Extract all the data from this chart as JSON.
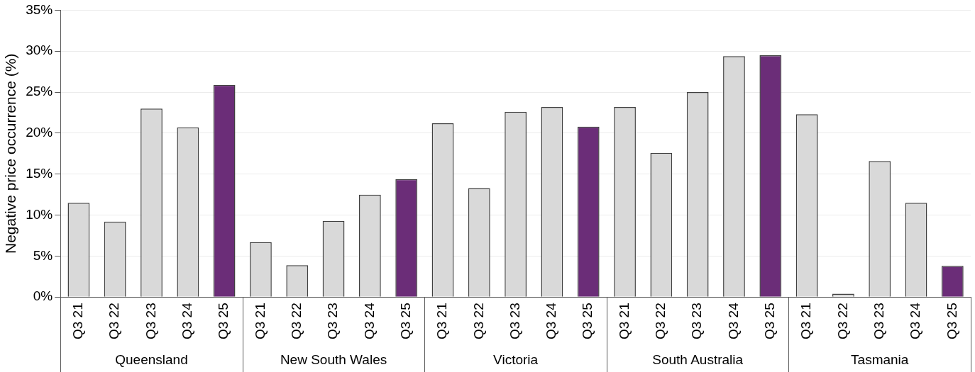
{
  "chart_data": {
    "type": "bar",
    "ylabel": "Negative price occurrence (%)",
    "categories": [
      "Q3 21",
      "Q3 22",
      "Q3 23",
      "Q3 24",
      "Q3 25",
      "Q3 21",
      "Q3 22",
      "Q3 23",
      "Q3 24",
      "Q3 25",
      "Q3 21",
      "Q3 22",
      "Q3 23",
      "Q3 24",
      "Q3 25",
      "Q3 21",
      "Q3 22",
      "Q3 23",
      "Q3 24",
      "Q3 25",
      "Q3 21",
      "Q3 22",
      "Q3 23",
      "Q3 24",
      "Q3 25"
    ],
    "values": [
      11.5,
      9.2,
      23.0,
      20.7,
      25.9,
      6.7,
      3.9,
      9.3,
      12.5,
      14.4,
      21.2,
      13.3,
      22.6,
      23.2,
      20.8,
      23.2,
      17.6,
      25.0,
      29.4,
      29.5,
      22.3,
      0.4,
      16.6,
      11.5,
      3.8
    ],
    "colors": [
      "#d9d9d9",
      "#d9d9d9",
      "#d9d9d9",
      "#d9d9d9",
      "#6b2d78",
      "#d9d9d9",
      "#d9d9d9",
      "#d9d9d9",
      "#d9d9d9",
      "#6b2d78",
      "#d9d9d9",
      "#d9d9d9",
      "#d9d9d9",
      "#d9d9d9",
      "#6b2d78",
      "#d9d9d9",
      "#d9d9d9",
      "#d9d9d9",
      "#d9d9d9",
      "#6b2d78",
      "#d9d9d9",
      "#d9d9d9",
      "#d9d9d9",
      "#d9d9d9",
      "#6b2d78"
    ],
    "ylim": [
      0,
      35
    ],
    "yticks": [
      {
        "value": 0,
        "label": "0%"
      },
      {
        "value": 5,
        "label": "5%"
      },
      {
        "value": 10,
        "label": "10%"
      },
      {
        "value": 15,
        "label": "15%"
      },
      {
        "value": 20,
        "label": "20%"
      },
      {
        "value": 25,
        "label": "25%"
      },
      {
        "value": 30,
        "label": "30%"
      },
      {
        "value": 35,
        "label": "35%"
      }
    ],
    "annotations": [
      "Queensland",
      "New South Wales",
      "Victoria",
      "South Australia",
      "Tasmania"
    ],
    "grid": "y",
    "legend": false
  }
}
